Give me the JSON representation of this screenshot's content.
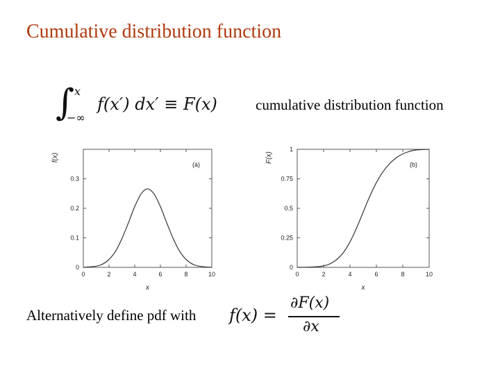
{
  "slide": {
    "title": "Cumulative distribution function",
    "cdf_caption": "cumulative distribution function",
    "pdf_caption": "Alternatively define pdf with"
  },
  "equations": {
    "cdf_upper": "x",
    "cdf_lower": "−∞",
    "cdf_body": "f(x′) dx′ ≡ F(x)",
    "pdf_lhs": "f(x) =",
    "pdf_num": "∂F(x)",
    "pdf_den": "∂x"
  },
  "colors": {
    "title": "#b03a10",
    "curve": "#333333"
  },
  "chart_data": [
    {
      "type": "line",
      "panel_label": "(a)",
      "xlabel": "x",
      "ylabel": "f(x)",
      "xlim": [
        0,
        10
      ],
      "ylim": [
        0,
        0.4
      ],
      "xticks": [
        0,
        2,
        4,
        6,
        8,
        10
      ],
      "xtick_labels": [
        "0",
        "2",
        "4",
        "6",
        "8",
        "10"
      ],
      "yticks": [
        0,
        0.1,
        0.2,
        0.3
      ],
      "ytick_labels": [
        "0",
        "0.1",
        "0.2",
        "0.3"
      ],
      "series": [
        {
          "x": [
            0,
            1,
            1.5,
            2,
            2.5,
            3,
            3.5,
            4,
            4.5,
            5,
            5.5,
            6,
            6.5,
            7,
            7.5,
            8,
            8.5,
            9,
            10
          ],
          "y": [
            0.0,
            0.004,
            0.011,
            0.027,
            0.054,
            0.097,
            0.15,
            0.206,
            0.249,
            0.266,
            0.249,
            0.206,
            0.15,
            0.097,
            0.054,
            0.027,
            0.011,
            0.004,
            0.0
          ]
        }
      ]
    },
    {
      "type": "line",
      "panel_label": "(b)",
      "xlabel": "x",
      "ylabel": "F(x)",
      "xlim": [
        0,
        10
      ],
      "ylim": [
        0,
        1
      ],
      "xticks": [
        0,
        2,
        4,
        6,
        8,
        10
      ],
      "xtick_labels": [
        "0",
        "2",
        "4",
        "6",
        "8",
        "10"
      ],
      "yticks": [
        0,
        0.25,
        0.5,
        0.75,
        1
      ],
      "ytick_labels": [
        "0",
        "0.25",
        "0.5",
        "0.75",
        "1"
      ],
      "series": [
        {
          "x": [
            0,
            1,
            1.5,
            2,
            2.5,
            3,
            3.5,
            4,
            4.5,
            5,
            5.5,
            6,
            6.5,
            7,
            7.5,
            8,
            8.5,
            9,
            10
          ],
          "y": [
            0.0,
            0.002,
            0.005,
            0.012,
            0.031,
            0.067,
            0.126,
            0.216,
            0.334,
            0.468,
            0.602,
            0.718,
            0.81,
            0.878,
            0.928,
            0.961,
            0.982,
            0.994,
            1.0
          ]
        }
      ]
    }
  ]
}
